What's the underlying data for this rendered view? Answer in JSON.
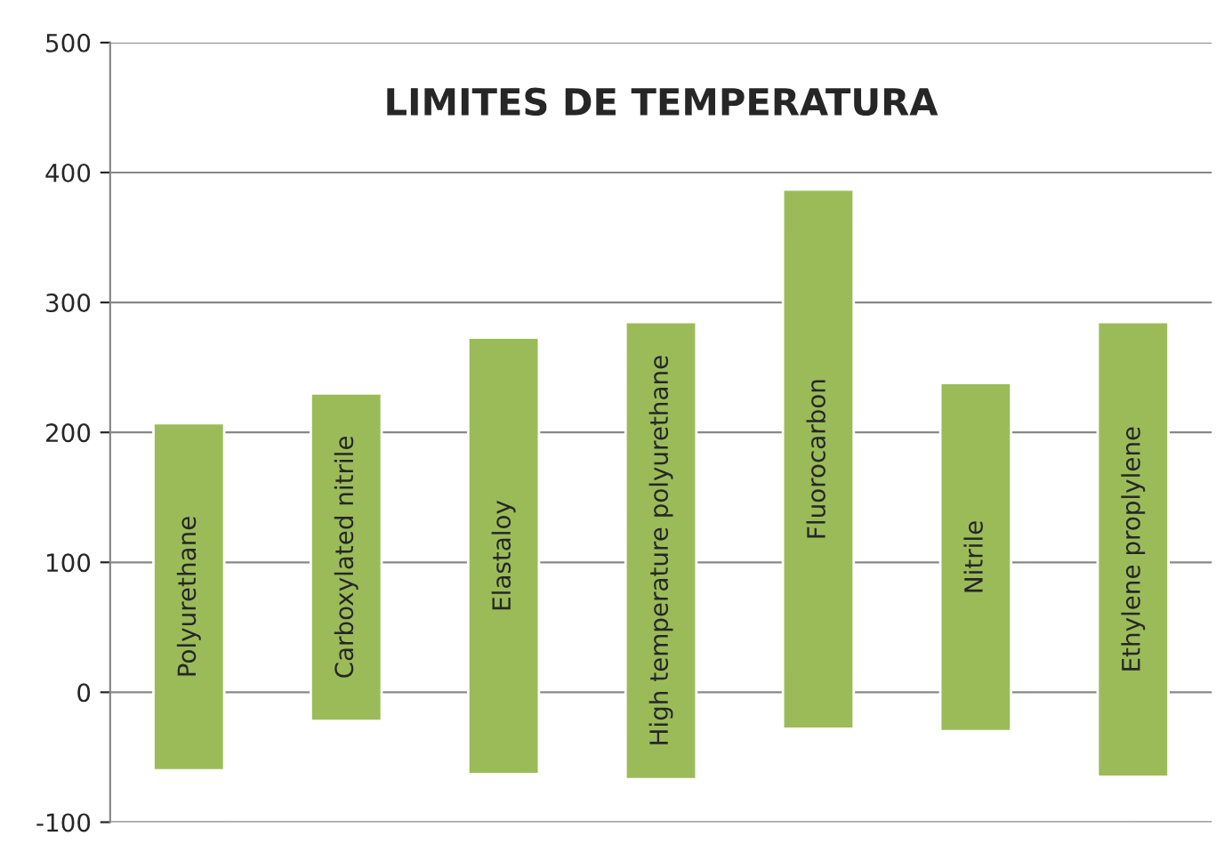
{
  "chart_data": {
    "type": "bar",
    "title": "LIMITES DE TEMPERATURA",
    "categories": [
      "Polyurethane",
      "Carboxylated nitrile",
      "Elastaloy",
      "High temperature polyurethane",
      "Fluorocarbon",
      "Nitrile",
      "Ethylene proplylene"
    ],
    "base": [
      -60,
      -22,
      -63,
      -67,
      -28,
      -30,
      -65
    ],
    "values": [
      267,
      252,
      336,
      352,
      415,
      268,
      350
    ],
    "color": "#9bbb59",
    "ylim": [
      -100,
      500
    ],
    "yticks": [
      -100,
      0,
      100,
      200,
      300,
      400,
      500
    ],
    "grid": "y"
  }
}
